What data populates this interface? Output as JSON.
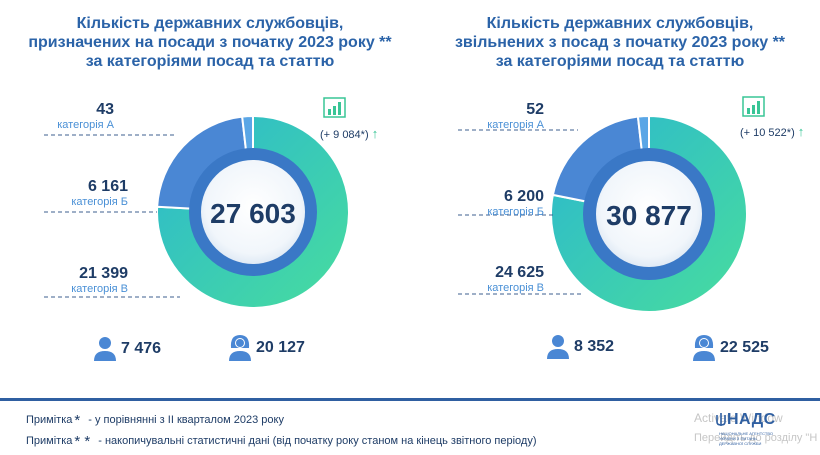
{
  "panels": [
    {
      "title": [
        "Кількість державних службовців,",
        "призначених на посади з початку 2023 року **",
        "за категоріями посад та статтю"
      ],
      "total": "27 603",
      "growth": "(+ 9 084*)",
      "growth_arrow": "↑",
      "categories": [
        {
          "value": "43",
          "label": "категорія А"
        },
        {
          "value": "6 161",
          "label": "категорія Б"
        },
        {
          "value": "21 399",
          "label": "категорія В"
        }
      ],
      "men": "7 476",
      "women": "20 127"
    },
    {
      "title": [
        "Кількість державних службовців,",
        "звільнених з посад з початку 2023 року **",
        "за категоріями посад та статтю"
      ],
      "total": "30 877",
      "growth": "(+ 10 522*)",
      "growth_arrow": "↑",
      "categories": [
        {
          "value": "52",
          "label": "категорія А"
        },
        {
          "value": "6 200",
          "label": "категорія Б"
        },
        {
          "value": "24 625",
          "label": "категорія В"
        }
      ],
      "men": "8 352",
      "women": "22 525"
    }
  ],
  "notes": [
    {
      "prefix": "Примітка",
      "mark": "*",
      "text": "- у порівнянні з ІІ кварталом 2023 року"
    },
    {
      "prefix": "Примітка",
      "mark": "* *",
      "text": "- накопичувальні статистичні дані (від початку року станом на кінець звітного періоду)"
    }
  ],
  "logo": {
    "name": "НАДС",
    "subtitle": "НАЦІОНАЛЬНЕ АГЕНТСТВО УКРАЇНИ З ПИТАНЬ ДЕРЖАВНОЇ СЛУЖБИ"
  },
  "watermark": {
    "line1": "Activate Window",
    "line2": "Перейдіть до розділу \"Н"
  },
  "colors": {
    "dark_blue": "#2f5fa1",
    "mid_blue": "#4a87d4",
    "teal": "#3fd7a0",
    "text_navy": "#1e3c66",
    "label_blue": "#4a90d6"
  },
  "chart_data": [
    {
      "type": "pie",
      "categories": [
        "категорія А",
        "категорія Б",
        "категорія В"
      ],
      "values": [
        43,
        6161,
        21399
      ],
      "total": 27603
    },
    {
      "type": "pie",
      "categories": [
        "категорія А",
        "категорія Б",
        "категорія В"
      ],
      "values": [
        52,
        6200,
        24625
      ],
      "total": 30877
    }
  ]
}
